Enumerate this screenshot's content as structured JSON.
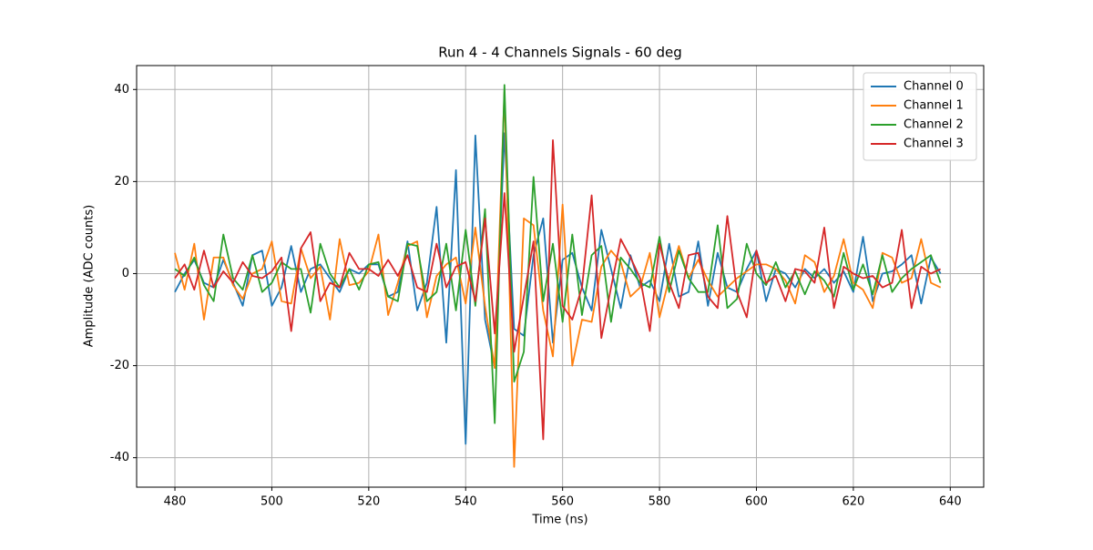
{
  "chart_data": {
    "type": "line",
    "title": "Run 4 - 4 Channels Signals - 60 deg",
    "xlabel": "Time (ns)",
    "ylabel": "Amplitude (ADC counts)",
    "x": [
      480,
      482,
      484,
      486,
      488,
      490,
      492,
      494,
      496,
      498,
      500,
      502,
      504,
      506,
      508,
      510,
      512,
      514,
      516,
      518,
      520,
      522,
      524,
      526,
      528,
      530,
      532,
      534,
      536,
      538,
      540,
      542,
      544,
      546,
      548,
      550,
      552,
      554,
      556,
      558,
      560,
      562,
      564,
      566,
      568,
      570,
      572,
      574,
      576,
      578,
      580,
      582,
      584,
      586,
      588,
      590,
      592,
      594,
      596,
      598,
      600,
      602,
      604,
      606,
      608,
      610,
      612,
      614,
      616,
      618,
      620,
      622,
      624,
      626,
      628,
      630,
      632,
      634,
      636,
      638
    ],
    "series": [
      {
        "name": "Channel 0",
        "color": "#1f77b4",
        "values": [
          -4,
          0,
          3,
          -2,
          -3,
          3,
          -2,
          -7,
          4,
          5,
          -7,
          -3,
          6,
          -4,
          1,
          2,
          -1,
          -4,
          1,
          0,
          2,
          2,
          -5,
          -4,
          7,
          -8,
          -2,
          14.5,
          -15,
          22.5,
          -37,
          30,
          -10,
          -20.5,
          30.5,
          -12,
          -13.5,
          4,
          12,
          -15,
          3,
          4.5,
          -3,
          -8,
          9.5,
          1,
          -7.5,
          4,
          -3,
          -1.5,
          -6,
          6.5,
          -5,
          -4,
          7,
          -7,
          4.5,
          -3,
          -4,
          1,
          5,
          -6,
          1,
          0,
          -3,
          1,
          -1,
          1,
          -2,
          0.5,
          -4,
          8,
          -6,
          0,
          0.5,
          2,
          4,
          -6.5,
          3.5,
          0
        ]
      },
      {
        "name": "Channel 1",
        "color": "#ff7f0e",
        "values": [
          4.5,
          -3.5,
          6.5,
          -10,
          3.5,
          3.5,
          -2.5,
          -5.5,
          0,
          1,
          7,
          -6,
          -6.5,
          5.5,
          -1,
          1.5,
          -10,
          7.5,
          -2.5,
          -2,
          0.5,
          8.5,
          -9,
          -2,
          6,
          7,
          -9.5,
          -0.5,
          2,
          3.5,
          -6.5,
          10,
          -7,
          -20.5,
          39.5,
          -42,
          12,
          10.5,
          -8,
          -18,
          15,
          -20,
          -10,
          -10.5,
          1.5,
          5,
          2.5,
          -5,
          -3,
          4.5,
          -9.5,
          -1,
          6,
          -1,
          3,
          -1.5,
          -5,
          -3,
          -1,
          0.5,
          2,
          2,
          1,
          -1.5,
          -6.5,
          4,
          2.5,
          -4,
          -0.5,
          7.5,
          -2,
          -3.5,
          -7.5,
          4.5,
          3.5,
          -2,
          -1,
          7.5,
          -2,
          -3
        ]
      },
      {
        "name": "Channel 2",
        "color": "#2ca02c",
        "values": [
          1,
          -0.5,
          3.5,
          -2.5,
          -6,
          8.5,
          -1,
          -3.5,
          4,
          -4,
          -2,
          2.5,
          1,
          1,
          -8.5,
          6.5,
          0,
          -3,
          1,
          -3.5,
          2,
          2.5,
          -5,
          -6,
          6.5,
          6,
          -6,
          -4,
          6.5,
          -8,
          9.5,
          -7,
          14,
          -32.5,
          41,
          -23.5,
          -17,
          21,
          -6,
          6.5,
          -10.5,
          8.5,
          -9,
          4,
          6,
          -10.5,
          3.5,
          1,
          -2,
          -3,
          8,
          -4,
          5,
          -1,
          -4,
          -4,
          10.5,
          -7.5,
          -5.5,
          6.5,
          0,
          -2.5,
          2.5,
          -3,
          0.5,
          -4.5,
          0.5,
          -1.5,
          -5,
          4.5,
          -3.5,
          2,
          -4.5,
          4,
          -4,
          -1,
          1,
          2.5,
          4,
          -2
        ]
      },
      {
        "name": "Channel 3",
        "color": "#d62728",
        "values": [
          -1,
          2,
          -3.5,
          5,
          -3,
          0.5,
          -2,
          2.5,
          -0.5,
          -1,
          0.5,
          3.5,
          -12.5,
          5.5,
          9,
          -6,
          -2,
          -3,
          4.5,
          1,
          1,
          -0.5,
          3,
          -0.5,
          4,
          -3,
          -4,
          6.5,
          -3,
          1.5,
          2.5,
          -6,
          12,
          -13,
          17.5,
          -17,
          -5,
          7,
          -36,
          29,
          -7,
          -10,
          -3,
          17,
          -14,
          -3,
          7.5,
          3.5,
          -1,
          -12.5,
          6.5,
          -2,
          -7.5,
          4,
          4.5,
          -5,
          -7.5,
          12.5,
          -4,
          -9.5,
          5,
          -2,
          -0.5,
          -6,
          1,
          0.5,
          -2,
          10,
          -7.5,
          1.5,
          0,
          -1,
          -0.5,
          -3,
          -2,
          9.5,
          -7.5,
          1.5,
          0,
          1
        ]
      }
    ],
    "xlim": [
      472.1,
      646.9
    ],
    "ylim": [
      -46.4,
      45.2
    ],
    "xticks": [
      480,
      500,
      520,
      540,
      560,
      580,
      600,
      620,
      640
    ],
    "yticks": [
      -40,
      -20,
      0,
      20,
      40
    ],
    "grid": true,
    "legend": "upper right"
  }
}
